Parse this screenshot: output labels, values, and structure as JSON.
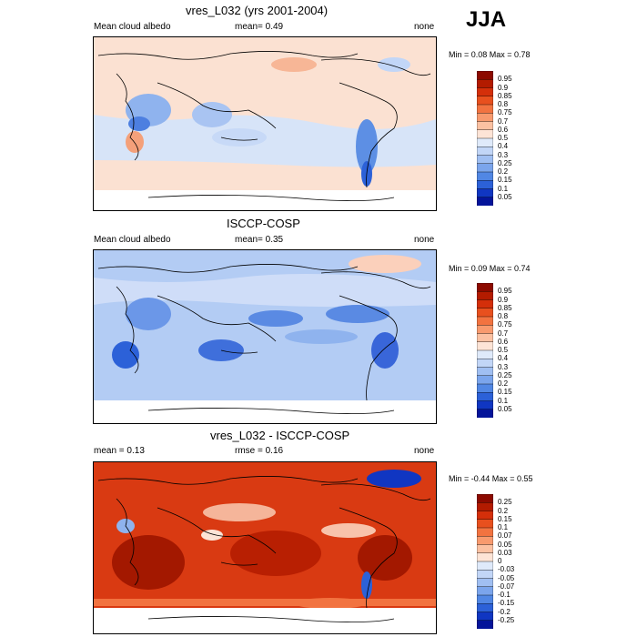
{
  "season": "JJA",
  "panels": [
    {
      "title": "vres_L032 (yrs 2001-2004)",
      "left": "Mean cloud albedo",
      "center": "mean=   0.49",
      "right": "none",
      "minmax": "Min =   0.08 Max =   0.78",
      "colorbar": [
        "0.95",
        "0.9",
        "0.85",
        "0.8",
        "0.75",
        "0.7",
        "0.6",
        "0.5",
        "0.4",
        "0.3",
        "0.25",
        "0.2",
        "0.15",
        "0.1",
        "0.05"
      ],
      "colors": [
        "#8c0a00",
        "#b31b00",
        "#d42f0a",
        "#e8501e",
        "#f27340",
        "#f89a6e",
        "#fbc1a2",
        "#fde4d6",
        "#dfeafa",
        "#c2d6f7",
        "#a0bff2",
        "#7ba5ec",
        "#5187e4",
        "#2c61d8",
        "#1036c2",
        "#04149a"
      ]
    },
    {
      "title": "ISCCP-COSP",
      "left": "Mean cloud albedo",
      "center": "mean=   0.35",
      "right": "none",
      "minmax": "Min =   0.09 Max =   0.74",
      "colorbar": [
        "0.95",
        "0.9",
        "0.85",
        "0.8",
        "0.75",
        "0.7",
        "0.6",
        "0.5",
        "0.4",
        "0.3",
        "0.25",
        "0.2",
        "0.15",
        "0.1",
        "0.05"
      ],
      "colors": [
        "#8c0a00",
        "#b31b00",
        "#d42f0a",
        "#e8501e",
        "#f27340",
        "#f89a6e",
        "#fbc1a2",
        "#fde4d6",
        "#dfeafa",
        "#c2d6f7",
        "#a0bff2",
        "#7ba5ec",
        "#5187e4",
        "#2c61d8",
        "#1036c2",
        "#04149a"
      ]
    },
    {
      "title": "vres_L032 - ISCCP-COSP",
      "left": "mean =   0.13",
      "center": "rmse =   0.16",
      "right": "none",
      "minmax": "Min =  -0.44 Max =   0.55",
      "colorbar": [
        "0.25",
        "0.2",
        "0.15",
        "0.1",
        "0.07",
        "0.05",
        "0.03",
        "0",
        "-0.03",
        "-0.05",
        "-0.07",
        "-0.1",
        "-0.15",
        "-0.2",
        "-0.25"
      ],
      "colors": [
        "#8c0a00",
        "#b31b00",
        "#d42f0a",
        "#e8501e",
        "#f27340",
        "#f89a6e",
        "#fbc1a2",
        "#fde4d6",
        "#dfeafa",
        "#c2d6f7",
        "#a0bff2",
        "#7ba5ec",
        "#5187e4",
        "#2c61d8",
        "#1036c2",
        "#04149a"
      ]
    }
  ]
}
